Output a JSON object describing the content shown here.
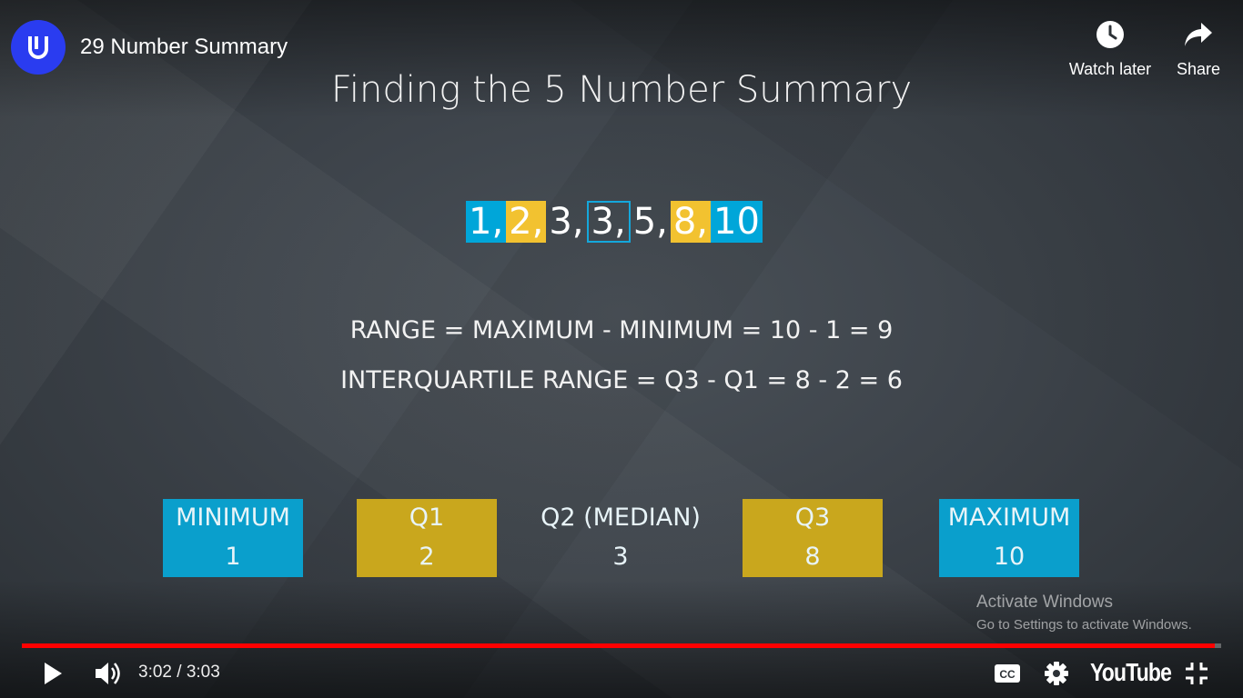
{
  "header": {
    "title": "29 Number Summary",
    "watch_later_label": "Watch later",
    "share_label": "Share"
  },
  "slide": {
    "title": "Finding the 5 Number Summary",
    "sequence": [
      {
        "text": "1,",
        "style": "blue"
      },
      {
        "text": "2,",
        "style": "yellow"
      },
      {
        "text": "3,",
        "style": "plain"
      },
      {
        "text": "3,",
        "style": "outline"
      },
      {
        "text": "5,",
        "style": "plain"
      },
      {
        "text": "8,",
        "style": "yellow"
      },
      {
        "text": "10",
        "style": "blue"
      }
    ],
    "range_formula": "RANGE = MAXIMUM - MINIMUM = 10 - 1 = 9",
    "iqr_formula": "INTERQUARTILE RANGE = Q3 - Q1 = 8 - 2 = 6",
    "summary": [
      {
        "label": "MINIMUM",
        "value": "1",
        "style": "blue"
      },
      {
        "label": "Q1",
        "value": "2",
        "style": "yellow"
      },
      {
        "label": "Q2 (MEDIAN)",
        "value": "3",
        "style": "plain"
      },
      {
        "label": "Q3",
        "value": "8",
        "style": "yellow"
      },
      {
        "label": "MAXIMUM",
        "value": "10",
        "style": "blue"
      }
    ]
  },
  "watermark": {
    "line1": "Activate Windows",
    "line2": "Go to Settings to activate Windows."
  },
  "player": {
    "time": "3:02 / 3:03",
    "progress": 0.995,
    "logo_text": "YouTube"
  },
  "colors": {
    "blue": "#00a6d9",
    "yellow": "#f2c230",
    "progress": "#ff0000",
    "channel_logo": "#2a3cf0"
  }
}
